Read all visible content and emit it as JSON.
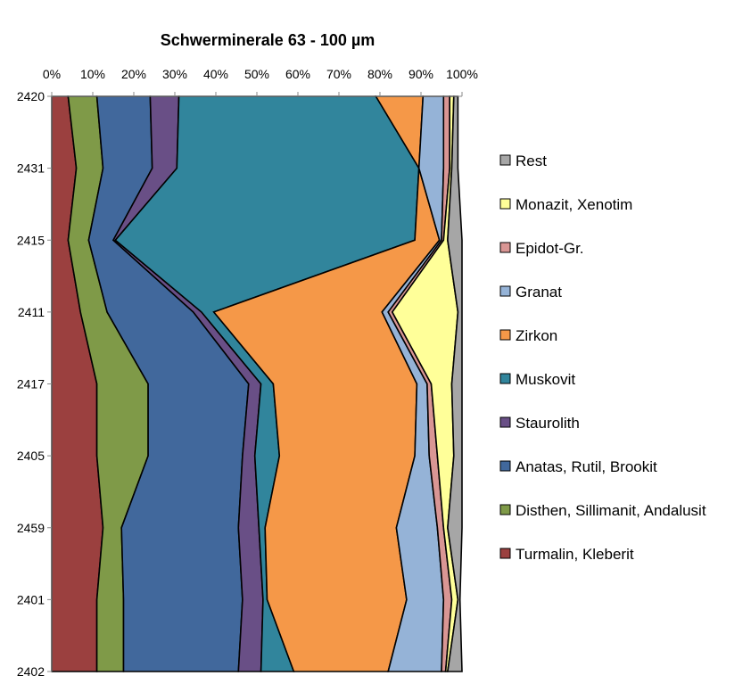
{
  "chart_data": {
    "type": "area",
    "orientation": "horizontal-stacked-percent",
    "title": "Schwerminerale 63 - 100 µm",
    "xlabel": "",
    "ylabel": "",
    "xlim": [
      0,
      100
    ],
    "x_ticks": [
      "0%",
      "10%",
      "20%",
      "30%",
      "40%",
      "50%",
      "60%",
      "70%",
      "80%",
      "90%",
      "100%"
    ],
    "categories": [
      "2420",
      "2431",
      "2415",
      "2411",
      "2417",
      "2405",
      "2459",
      "2401",
      "2402"
    ],
    "grid": false,
    "legend_position": "right",
    "series": [
      {
        "name": "Turmalin, Kleberit",
        "color": "#9B403F",
        "values": [
          4,
          6,
          4,
          7,
          11,
          11,
          12.5,
          11,
          11
        ]
      },
      {
        "name": "Disthen, Sillimanit, Andalusit",
        "color": "#7F9A48",
        "values": [
          7,
          6.5,
          5,
          6.5,
          12.5,
          12.5,
          4.5,
          6.5,
          6.5
        ]
      },
      {
        "name": "Anatas, Rutil, Brookit",
        "color": "#41689C",
        "values": [
          13,
          12,
          6,
          21,
          24.5,
          23,
          28.5,
          29,
          28
        ]
      },
      {
        "name": "Staurolith",
        "color": "#694F86",
        "values": [
          7,
          6,
          0.5,
          2,
          3,
          3,
          5,
          5,
          5.5
        ]
      },
      {
        "name": "Muskovit",
        "color": "#31859C",
        "values": [
          48,
          59,
          73,
          3,
          3,
          6,
          1.5,
          1,
          8
        ]
      },
      {
        "name": "Zirkon",
        "color": "#F59848",
        "values": [
          11.5,
          0,
          6,
          41,
          35,
          33,
          32,
          34,
          23
        ]
      },
      {
        "name": "Granat",
        "color": "#95B3D7",
        "values": [
          5,
          6,
          0.5,
          1.5,
          2.5,
          3.5,
          10,
          9,
          13
        ]
      },
      {
        "name": "Epidot-Gr.",
        "color": "#D99694",
        "values": [
          1.5,
          1.5,
          0.5,
          1,
          1,
          2,
          1.5,
          2,
          1
        ]
      },
      {
        "name": "Monazit, Xenotim",
        "color": "#FFFF99",
        "values": [
          1,
          0.5,
          1,
          16,
          5,
          4,
          1,
          1.5,
          0.5
        ]
      },
      {
        "name": "Rest",
        "color": "#A6A6A6",
        "values": [
          1,
          1.5,
          3.5,
          1,
          2.5,
          2,
          3.5,
          0.5,
          3.5
        ]
      }
    ]
  }
}
